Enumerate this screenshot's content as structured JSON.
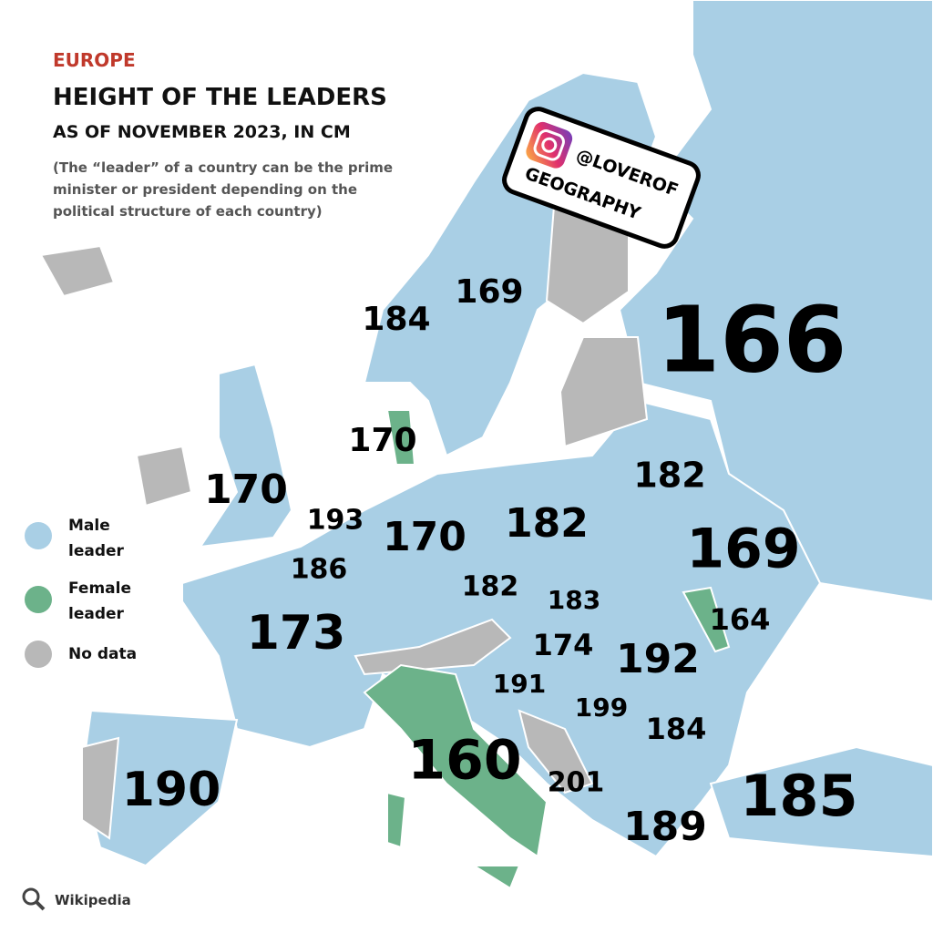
{
  "header": {
    "region": "EUROPE",
    "title": "HEIGHT OF THE LEADERS",
    "subtitle": "AS OF NOVEMBER 2023, IN CM",
    "note": "(The “leader” of a country can be the prime minister or president depending on the political structure of each country)"
  },
  "badge": {
    "line1": "@LOVEROF",
    "line2": "GEOGRAPHY"
  },
  "legend": [
    {
      "label": "Male leader",
      "color": "#a9cfe5"
    },
    {
      "label": "Female leader",
      "color": "#6cb28a"
    },
    {
      "label": "No data",
      "color": "#b8b8b8"
    }
  ],
  "labels": [
    166,
    169,
    184,
    170,
    170,
    193,
    170,
    182,
    182,
    169,
    186,
    182,
    183,
    164,
    173,
    174,
    192,
    191,
    199,
    184,
    160,
    201,
    190,
    185,
    189
  ],
  "source": "Wikipedia"
}
